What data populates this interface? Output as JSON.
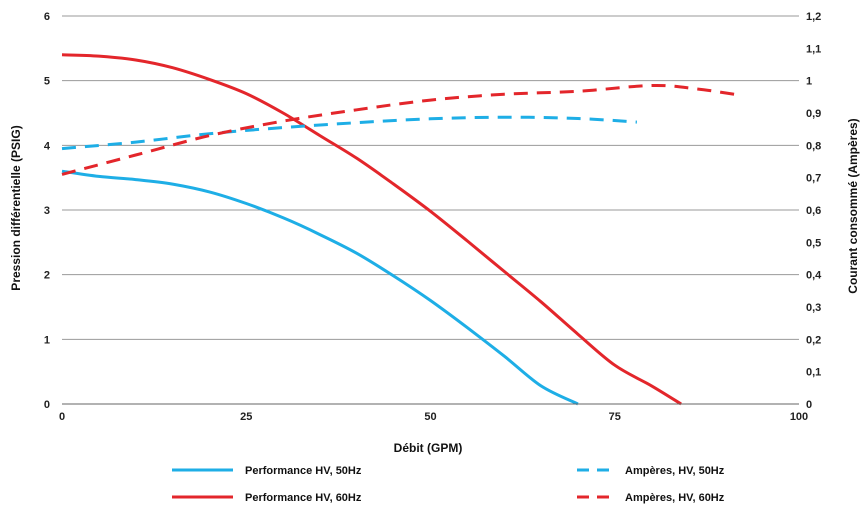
{
  "chart_data": {
    "type": "line",
    "xlabel": "Débit (GPM)",
    "ylabel": "Pression différentielle (PSIG)",
    "y2label": "Courant consommé (Ampères)",
    "xlim": [
      0,
      100
    ],
    "ylim": [
      0,
      6
    ],
    "y2lim": [
      0,
      1.2
    ],
    "xticks": [
      "0",
      "25",
      "50",
      "75",
      "100"
    ],
    "yticks": [
      "0",
      "1",
      "2",
      "3",
      "4",
      "5",
      "6"
    ],
    "y2ticks": [
      "0",
      "0,1",
      "0,2",
      "0,3",
      "0,4",
      "0,5",
      "0,6",
      "0,7",
      "0,8",
      "0,9",
      "1",
      "1,1",
      "1,2"
    ],
    "grid": "horizontal",
    "legend_position": "bottom",
    "series": [
      {
        "name": "Performance HV, 50Hz",
        "axis": "left",
        "style": "solid",
        "color": "#1eaee6",
        "x": [
          0,
          5,
          10,
          15,
          20,
          25,
          30,
          35,
          40,
          45,
          50,
          55,
          60,
          65,
          70
        ],
        "y": [
          3.6,
          3.52,
          3.47,
          3.4,
          3.28,
          3.1,
          2.88,
          2.62,
          2.33,
          1.98,
          1.6,
          1.18,
          0.74,
          0.28,
          0.0
        ]
      },
      {
        "name": "Performance HV, 60Hz",
        "axis": "left",
        "style": "solid",
        "color": "#e3262b",
        "x": [
          0,
          5,
          10,
          15,
          20,
          25,
          30,
          35,
          40,
          45,
          50,
          55,
          60,
          65,
          70,
          75,
          80,
          84
        ],
        "y": [
          5.4,
          5.38,
          5.32,
          5.2,
          5.02,
          4.8,
          4.5,
          4.15,
          3.8,
          3.4,
          2.98,
          2.52,
          2.05,
          1.58,
          1.08,
          0.6,
          0.28,
          0.0
        ]
      },
      {
        "name": "Ampères, HV, 50Hz",
        "axis": "right",
        "style": "dashed",
        "color": "#1eaee6",
        "x": [
          0,
          10,
          20,
          30,
          40,
          50,
          60,
          70,
          78
        ],
        "y": [
          0.79,
          0.81,
          0.836,
          0.855,
          0.87,
          0.882,
          0.887,
          0.883,
          0.872
        ]
      },
      {
        "name": "Ampères, HV, 60Hz",
        "axis": "right",
        "style": "dashed",
        "color": "#e3262b",
        "x": [
          0,
          10,
          20,
          30,
          40,
          50,
          60,
          70,
          80,
          86,
          92
        ],
        "y": [
          0.71,
          0.77,
          0.83,
          0.875,
          0.91,
          0.94,
          0.958,
          0.967,
          0.985,
          0.975,
          0.955
        ]
      }
    ]
  }
}
